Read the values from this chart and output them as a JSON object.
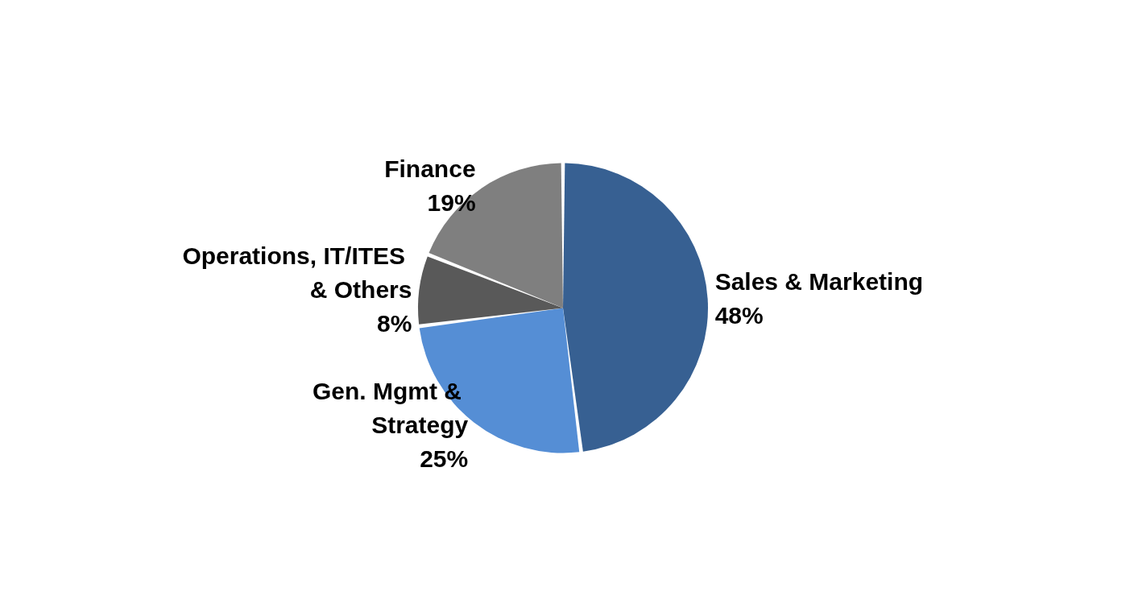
{
  "chart_data": {
    "type": "pie",
    "categories": [
      "Sales & Marketing",
      "Gen. Mgmt & Strategy",
      "Operations, IT/ITES & Others",
      "Finance"
    ],
    "values": [
      48,
      25,
      8,
      19
    ],
    "colors": [
      "#376092",
      "#558ed5",
      "#595959",
      "#7f7f7f"
    ],
    "value_labels": [
      "48%",
      "25%",
      "8%",
      "19%"
    ],
    "legend": false
  }
}
